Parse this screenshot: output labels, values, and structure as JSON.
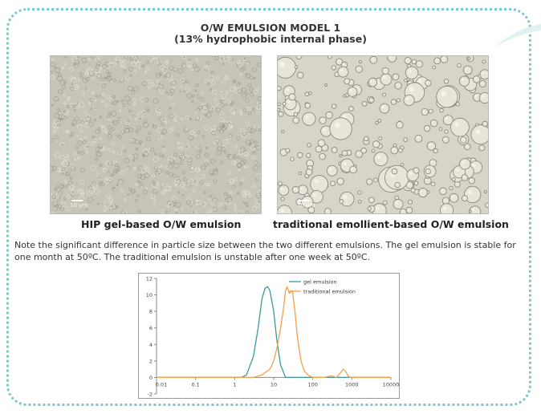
{
  "header": {
    "title": "O/W EMULSION MODEL 1",
    "subtitle": "(13% hydrophobic internal phase)"
  },
  "images": {
    "left": {
      "caption": "HIP gel-based O/W emulsion",
      "scale_label": "10 µm",
      "tone": "#c8c3b8"
    },
    "right": {
      "caption": "traditional emollient-based O/W emulsion",
      "scale_label": "10 µm",
      "tone": "#d9d4ca"
    }
  },
  "note": "Note the significant difference in particle size between the two different emulsions.  The gel emulsion is stable for one month at 50ºC.  The traditional emulsion is unstable after one week at 50ºC.",
  "colors": {
    "gel": "#3a9a9a",
    "traditional": "#f5a04a",
    "frame": "#7fc9c9"
  },
  "chart_data": {
    "type": "line",
    "x_scale": "log",
    "xlim": [
      0.01,
      10000
    ],
    "ylim": [
      -2,
      12
    ],
    "x_ticks": [
      "0.01",
      "0.1",
      "1",
      "10",
      "100",
      "1000",
      "10000"
    ],
    "y_ticks": [
      "-2",
      "0",
      "2",
      "4",
      "6",
      "8",
      "10",
      "12"
    ],
    "grid": false,
    "legend_position": "top-right",
    "series": [
      {
        "name": "gel emulsion",
        "x": [
          0.01,
          1,
          1.5,
          2,
          3,
          4,
          5,
          6,
          7,
          8,
          10,
          12,
          15,
          20,
          10000
        ],
        "y": [
          0,
          0,
          0,
          0.3,
          2.5,
          6,
          9.5,
          10.8,
          11,
          10.5,
          8,
          4.5,
          1.5,
          0,
          0
        ]
      },
      {
        "name": "traditional emulsion",
        "x": [
          0.01,
          2,
          3,
          5,
          8,
          10,
          12,
          15,
          18,
          20,
          22,
          25,
          30,
          35,
          40,
          50,
          60,
          80,
          100,
          150,
          200,
          300,
          400,
          500,
          600,
          700,
          800,
          900,
          1000,
          10000
        ],
        "y": [
          0,
          0,
          0,
          0.3,
          1,
          2,
          3.5,
          6,
          8.5,
          10.5,
          11,
          10.2,
          10.5,
          8,
          5,
          2,
          0.8,
          0.2,
          0,
          0,
          0,
          0.2,
          0,
          0.5,
          1,
          0.7,
          0.2,
          0,
          0,
          0
        ]
      }
    ]
  }
}
